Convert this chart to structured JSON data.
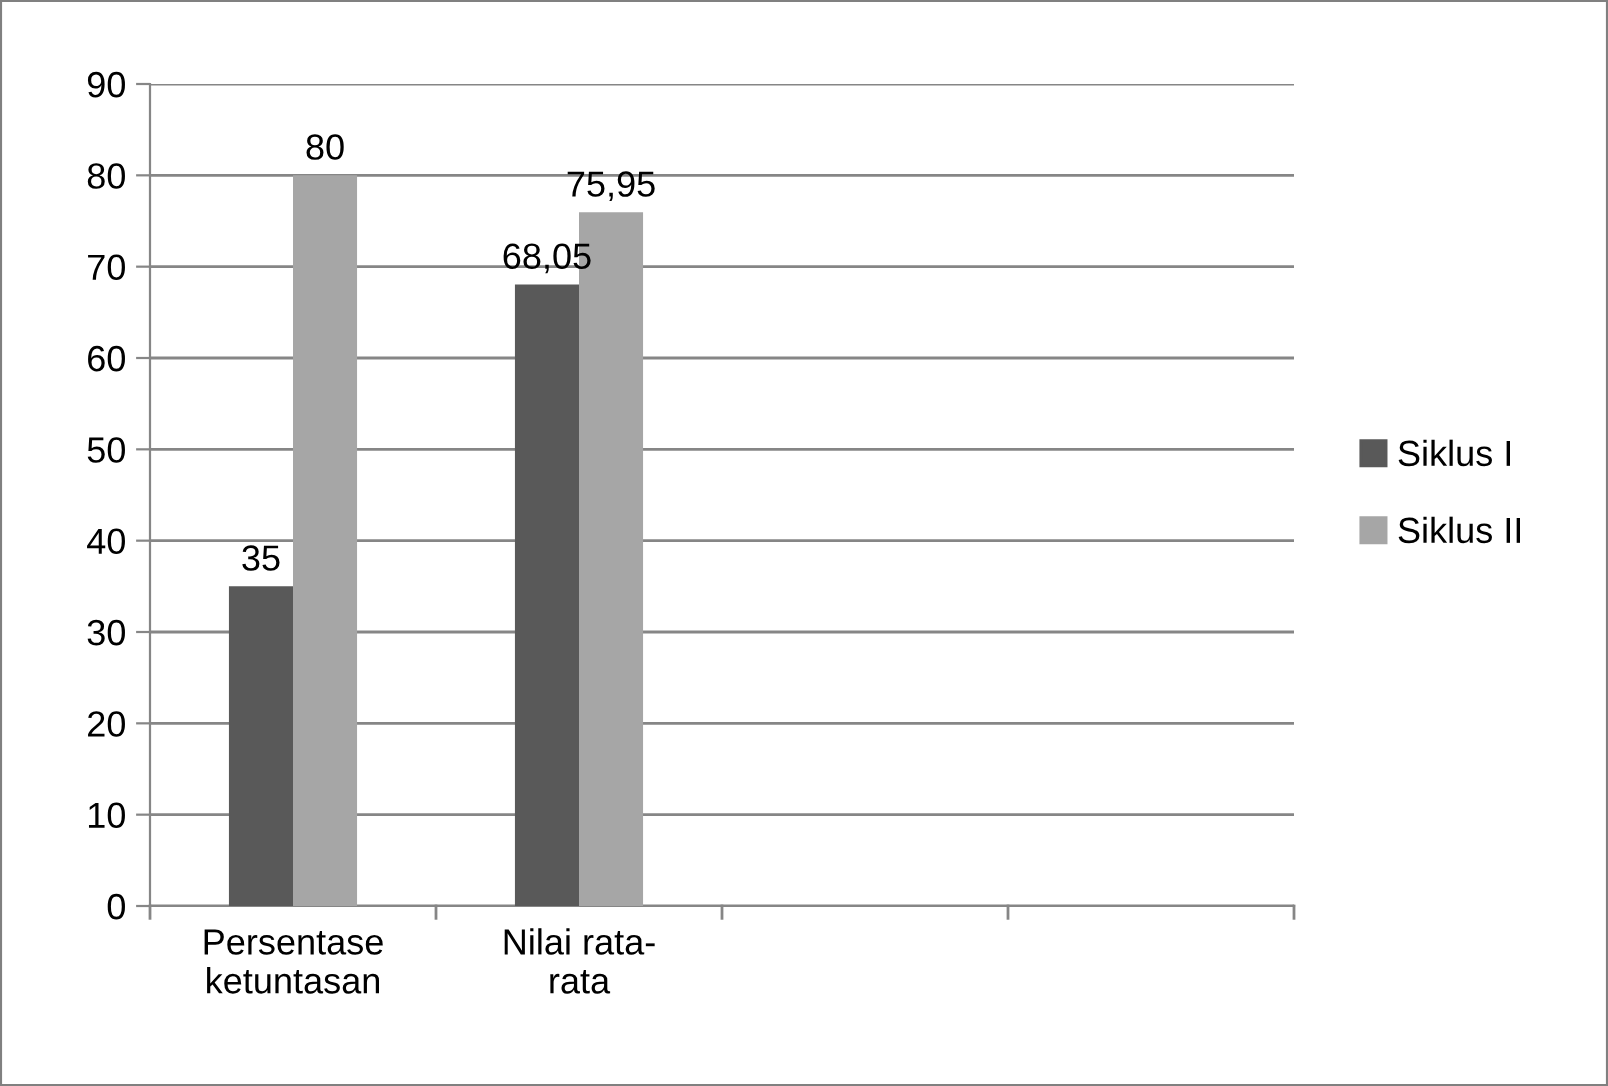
{
  "chart_data": {
    "type": "bar",
    "categories": [
      "Persentase\nketuntasan",
      "Nilai rata-\nrata",
      null,
      null
    ],
    "series": [
      {
        "name": "Siklus I",
        "color": "#595959",
        "values": [
          35,
          68.05,
          null,
          null
        ],
        "value_labels": [
          "35",
          "68,05",
          null,
          null
        ]
      },
      {
        "name": "Siklus II",
        "color": "#a6a6a6",
        "values": [
          80,
          75.95,
          null,
          null
        ],
        "value_labels": [
          "80",
          "75,95",
          null,
          null
        ]
      }
    ],
    "ylim": [
      0,
      90
    ],
    "yticks": [
      0,
      10,
      20,
      30,
      40,
      50,
      60,
      70,
      80,
      90
    ],
    "grid": "y",
    "legend": "right"
  }
}
